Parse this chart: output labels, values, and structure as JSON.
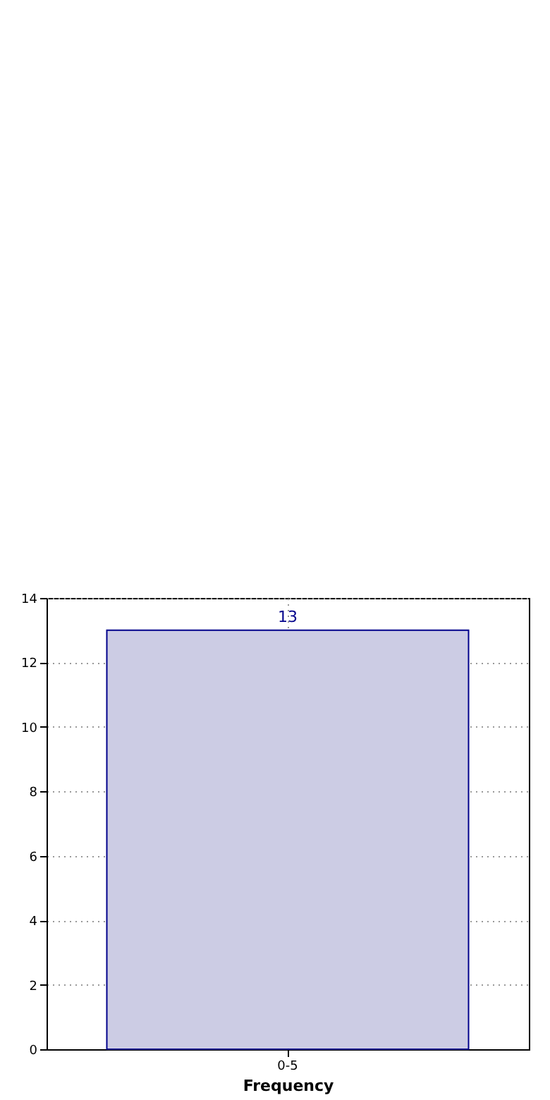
{
  "chart_data": {
    "type": "bar",
    "xlabel": "Frequency",
    "categories": [
      "0-5"
    ],
    "values": [
      13
    ],
    "color": "#cccce4",
    "ylim": [
      0,
      14
    ],
    "yticks": [
      0,
      2,
      4,
      6,
      8,
      10,
      12,
      14
    ],
    "grid": true,
    "data_labels": true
  }
}
